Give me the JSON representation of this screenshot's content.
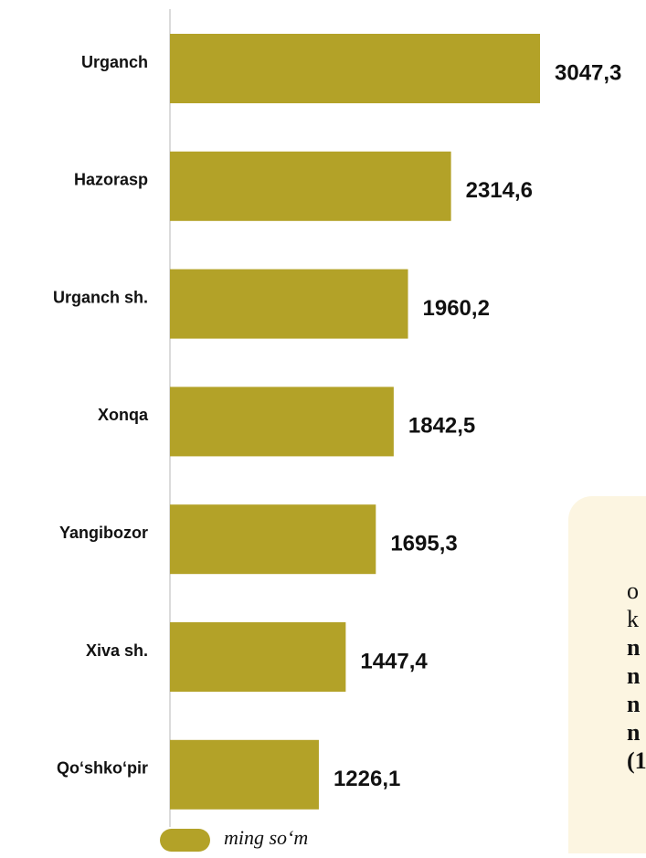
{
  "chart_data": {
    "type": "bar",
    "orientation": "horizontal",
    "categories": [
      "Urganch",
      "Hazorasp",
      "Urganch sh.",
      "Xonqa",
      "Yangibozor",
      "Xiva sh.",
      "Qo‘shko‘pir"
    ],
    "series": [
      {
        "name": "ming so‘m",
        "color": "#b3a228",
        "values": [
          3047.3,
          2314.6,
          1960.2,
          1842.5,
          1695.3,
          1447.4,
          1226.1
        ],
        "value_labels": [
          "3047,3",
          "2314,6",
          "1960,2",
          "1842,5",
          "1695,3",
          "1447,4",
          "1226,1"
        ]
      }
    ]
  },
  "note": {
    "lines": [
      {
        "text": "o",
        "bold": false
      },
      {
        "text": "k",
        "bold": false
      },
      {
        "text": "n",
        "bold": true
      },
      {
        "text": "n",
        "bold": true
      },
      {
        "text": "n",
        "bold": true
      },
      {
        "text": "n",
        "bold": true
      },
      {
        "text": "(1",
        "bold": true
      }
    ]
  }
}
